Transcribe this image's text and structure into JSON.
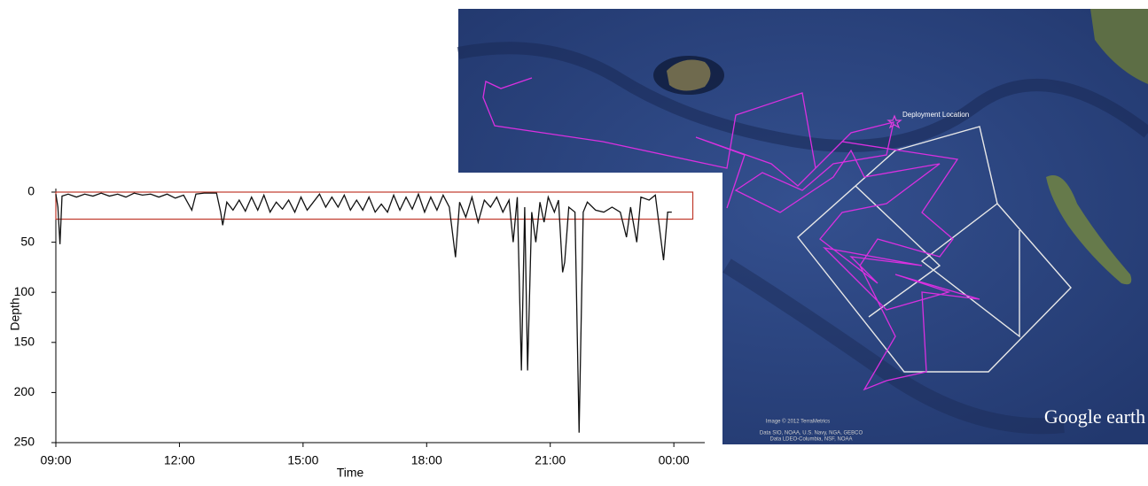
{
  "chart_data": {
    "type": "line",
    "x_label": "Time",
    "y_label": "Depth",
    "x": [
      9.0,
      9.05,
      9.1,
      9.15,
      9.3,
      9.5,
      9.7,
      9.9,
      10.1,
      10.3,
      10.5,
      10.7,
      10.9,
      11.1,
      11.3,
      11.5,
      11.7,
      11.9,
      12.1,
      12.3,
      12.4,
      12.6,
      12.9,
      13.0,
      13.05,
      13.15,
      13.3,
      13.45,
      13.6,
      13.75,
      13.9,
      14.05,
      14.2,
      14.35,
      14.5,
      14.65,
      14.8,
      14.95,
      15.1,
      15.25,
      15.4,
      15.55,
      15.7,
      15.85,
      16.0,
      16.15,
      16.3,
      16.45,
      16.6,
      16.75,
      16.9,
      17.05,
      17.2,
      17.35,
      17.5,
      17.65,
      17.8,
      17.95,
      18.1,
      18.25,
      18.4,
      18.55,
      18.7,
      18.8,
      18.95,
      19.1,
      19.25,
      19.4,
      19.55,
      19.7,
      19.85,
      20.0,
      20.1,
      20.2,
      20.3,
      20.38,
      20.45,
      20.55,
      20.65,
      20.75,
      20.85,
      20.95,
      21.1,
      21.2,
      21.3,
      21.35,
      21.45,
      21.6,
      21.7,
      21.8,
      21.9,
      22.1,
      22.3,
      22.5,
      22.7,
      22.85,
      22.95,
      23.1,
      23.2,
      23.4,
      23.55,
      23.75,
      23.85,
      23.95
    ],
    "series": [
      {
        "name": "Depth",
        "color": "#111111",
        "values": [
          2,
          15,
          52,
          4,
          2,
          5,
          2,
          4,
          1,
          4,
          2,
          5,
          1,
          3,
          2,
          5,
          2,
          6,
          3,
          18,
          2,
          1,
          1,
          20,
          33,
          10,
          18,
          8,
          19,
          5,
          18,
          3,
          20,
          10,
          17,
          8,
          20,
          5,
          18,
          10,
          2,
          15,
          5,
          15,
          3,
          18,
          8,
          18,
          5,
          20,
          12,
          20,
          3,
          18,
          5,
          17,
          2,
          20,
          5,
          18,
          3,
          15,
          65,
          10,
          25,
          5,
          30,
          8,
          15,
          5,
          20,
          8,
          50,
          5,
          178,
          15,
          178,
          20,
          50,
          10,
          30,
          5,
          20,
          8,
          80,
          70,
          15,
          20,
          240,
          20,
          10,
          18,
          20,
          15,
          20,
          45,
          15,
          50,
          5,
          8,
          3,
          68,
          20,
          20
        ]
      }
    ],
    "highlight_box": {
      "x": [
        9.0,
        24.46
      ],
      "y": [
        0,
        27
      ],
      "color": "#c0392b"
    },
    "xlim": [
      9,
      24.75
    ],
    "xticks": [
      {
        "value": 9,
        "label": "09:00"
      },
      {
        "value": 12,
        "label": "12:00"
      },
      {
        "value": 15,
        "label": "15:00"
      },
      {
        "value": 18,
        "label": "18:00"
      },
      {
        "value": 21,
        "label": "21:00"
      },
      {
        "value": 24,
        "label": "00:00"
      }
    ],
    "ylim": [
      0,
      250
    ],
    "y_inverted": true,
    "yticks": [
      0,
      50,
      100,
      150,
      200,
      250
    ]
  },
  "map": {
    "marker_label": "Deployment Location",
    "logo": "Google earth",
    "credits": [
      "Image © 2012 TerraMetrics",
      "Data SIO, NOAA, U.S. Navy, NGA, GEBCO",
      "Data LDEO-Columbia, NSF, NOAA"
    ]
  }
}
